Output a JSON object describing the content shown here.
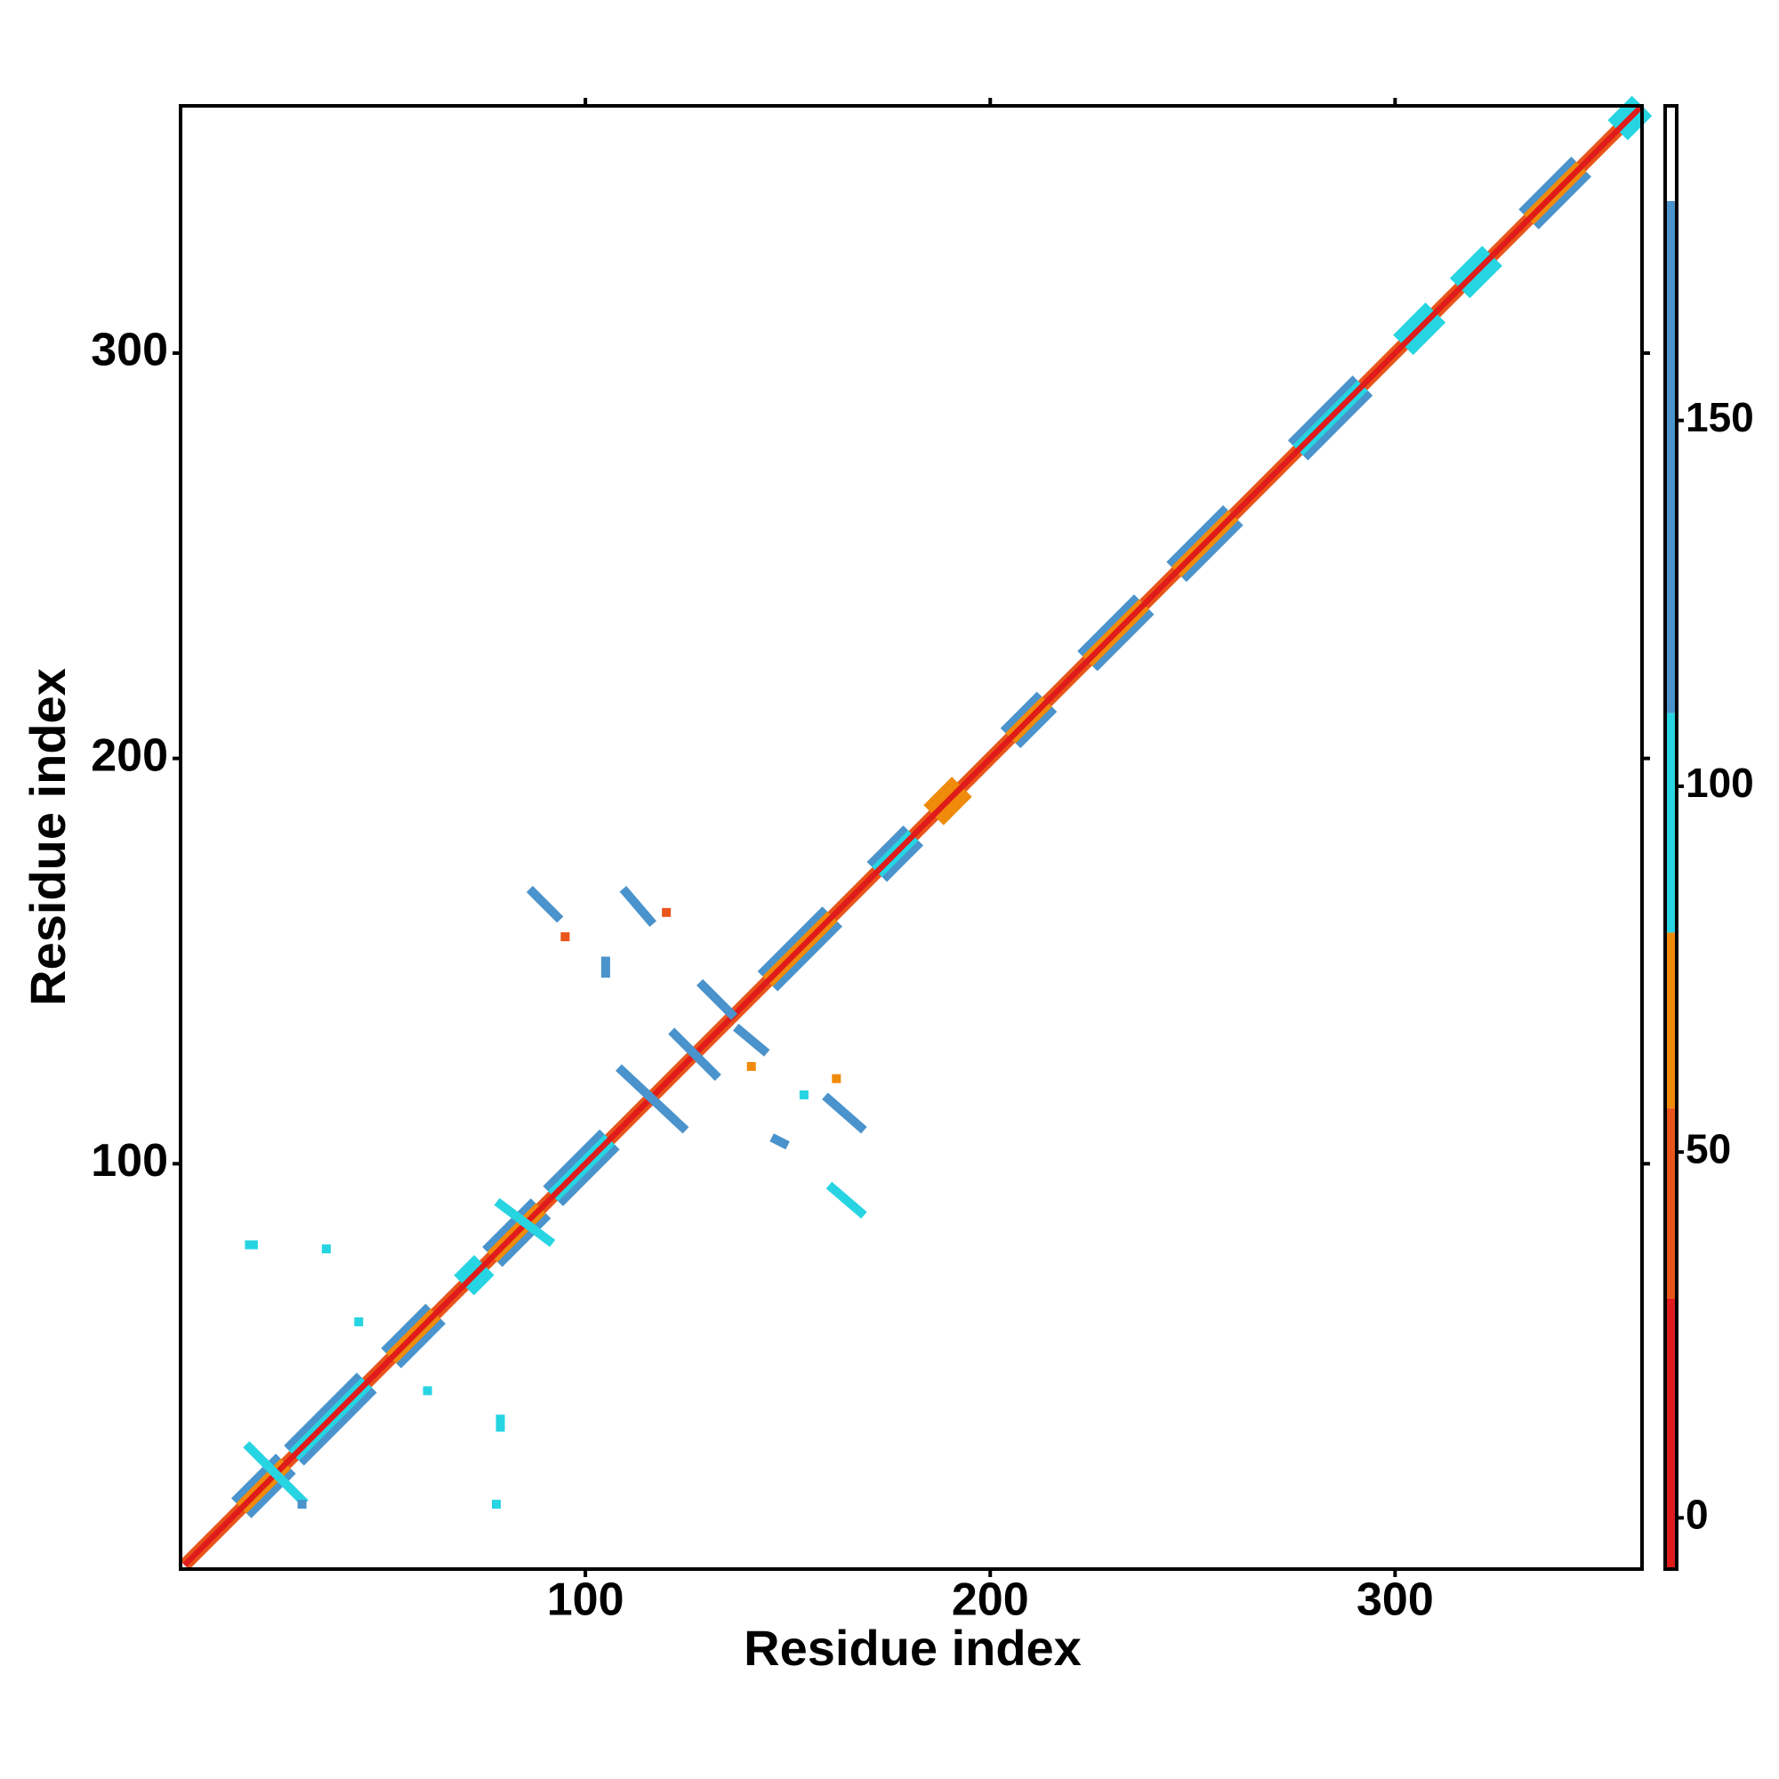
{
  "chart_data": {
    "type": "contact_map",
    "xlabel": "Residue index",
    "ylabel": "Residue index",
    "xlim": [
      0,
      361
    ],
    "ylim": [
      0,
      361
    ],
    "xticks": [
      100,
      200,
      300
    ],
    "yticks": [
      100,
      200,
      300
    ],
    "colorbar": {
      "lim": [
        -7,
        193
      ],
      "ticks": [
        0,
        50,
        100,
        150
      ],
      "bounds": [
        -7,
        30,
        56,
        80,
        110,
        180,
        193
      ],
      "colors": [
        "#e01b1b",
        "#e9541a",
        "#f08a0a",
        "#27d4e2",
        "#4a93cc",
        "#ffffff"
      ]
    },
    "diagonal_wide": [
      {
        "x": [
          1,
          361
        ],
        "y": [
          1,
          361
        ],
        "value": 45
      }
    ],
    "helix_outer": [
      {
        "x": [
          15,
          26
        ],
        "y": [
          15,
          26
        ],
        "value": 140
      },
      {
        "x": [
          28,
          46
        ],
        "y": [
          28,
          46
        ],
        "value": 140
      },
      {
        "x": [
          52,
          63
        ],
        "y": [
          52,
          63
        ],
        "value": 140
      },
      {
        "x": [
          70,
          75
        ],
        "y": [
          70,
          75
        ],
        "value": 100
      },
      {
        "x": [
          77,
          89
        ],
        "y": [
          77,
          89
        ],
        "value": 140
      },
      {
        "x": [
          92,
          106
        ],
        "y": [
          92,
          106
        ],
        "value": 140
      },
      {
        "x": [
          145,
          161
        ],
        "y": [
          145,
          161
        ],
        "value": 140
      },
      {
        "x": [
          172,
          181
        ],
        "y": [
          172,
          181
        ],
        "value": 140
      },
      {
        "x": [
          186,
          193
        ],
        "y": [
          186,
          193
        ],
        "value": 60
      },
      {
        "x": [
          205,
          214
        ],
        "y": [
          205,
          214
        ],
        "value": 140
      },
      {
        "x": [
          224,
          238
        ],
        "y": [
          224,
          238
        ],
        "value": 140
      },
      {
        "x": [
          246,
          260
        ],
        "y": [
          246,
          260
        ],
        "value": 140
      },
      {
        "x": [
          276,
          292
        ],
        "y": [
          276,
          292
        ],
        "value": 140
      },
      {
        "x": [
          302,
          310
        ],
        "y": [
          302,
          310
        ],
        "value": 100
      },
      {
        "x": [
          316,
          324
        ],
        "y": [
          316,
          324
        ],
        "value": 100
      },
      {
        "x": [
          333,
          346
        ],
        "y": [
          333,
          346
        ],
        "value": 140
      },
      {
        "x": [
          355,
          361
        ],
        "y": [
          355,
          361
        ],
        "value": 100
      }
    ],
    "helix_inner": [
      {
        "x": [
          15,
          26
        ],
        "y": [
          15,
          26
        ],
        "value": 65
      },
      {
        "x": [
          28,
          46
        ],
        "y": [
          28,
          46
        ],
        "value": 95
      },
      {
        "x": [
          52,
          63
        ],
        "y": [
          52,
          63
        ],
        "value": 65
      },
      {
        "x": [
          77,
          89
        ],
        "y": [
          77,
          89
        ],
        "value": 65
      },
      {
        "x": [
          92,
          106
        ],
        "y": [
          92,
          106
        ],
        "value": 95
      },
      {
        "x": [
          145,
          161
        ],
        "y": [
          145,
          161
        ],
        "value": 65
      },
      {
        "x": [
          172,
          181
        ],
        "y": [
          172,
          181
        ],
        "value": 95
      },
      {
        "x": [
          205,
          214
        ],
        "y": [
          205,
          214
        ],
        "value": 65
      },
      {
        "x": [
          224,
          238
        ],
        "y": [
          224,
          238
        ],
        "value": 65
      },
      {
        "x": [
          246,
          260
        ],
        "y": [
          246,
          260
        ],
        "value": 65
      },
      {
        "x": [
          276,
          292
        ],
        "y": [
          276,
          292
        ],
        "value": 95
      },
      {
        "x": [
          333,
          346
        ],
        "y": [
          333,
          346
        ],
        "value": 65
      }
    ],
    "diagonal": [
      {
        "x": [
          1,
          361
        ],
        "y": [
          1,
          361
        ],
        "value": 10
      }
    ],
    "contacts": [
      {
        "x": [
          87,
          93
        ],
        "y": [
          167,
          161
        ],
        "value": 150
      },
      {
        "x": [
          110,
          116
        ],
        "y": [
          167,
          160
        ],
        "value": 150
      },
      {
        "x": [
          109,
          124
        ],
        "y": [
          123,
          109
        ],
        "value": 150
      },
      {
        "x": [
          122,
          132
        ],
        "y": [
          132,
          122
        ],
        "value": 150
      },
      {
        "x": [
          129,
          136
        ],
        "y": [
          144,
          137
        ],
        "value": 150
      },
      {
        "x": [
          138,
          144
        ],
        "y": [
          133,
          128
        ],
        "value": 130
      },
      {
        "x": [
          160,
          168
        ],
        "y": [
          116,
          109
        ],
        "value": 150
      },
      {
        "x": [
          161,
          168
        ],
        "y": [
          94,
          88
        ],
        "value": 105
      },
      {
        "x": [
          79,
          91
        ],
        "y": [
          90,
          81
        ],
        "value": 105
      },
      {
        "x": [
          17,
          30
        ],
        "y": [
          30,
          17
        ],
        "value": 105
      },
      {
        "x": [
          36,
          36
        ],
        "y": [
          79,
          79
        ],
        "value": 105
      },
      {
        "x": [
          17,
          18
        ],
        "y": [
          80,
          80
        ],
        "value": 105
      },
      {
        "x": [
          79,
          79
        ],
        "y": [
          35,
          37
        ],
        "value": 105
      },
      {
        "x": [
          78,
          78
        ],
        "y": [
          16,
          16
        ],
        "value": 105
      },
      {
        "x": [
          30,
          30
        ],
        "y": [
          16,
          16
        ],
        "value": 150
      },
      {
        "x": [
          105,
          105
        ],
        "y": [
          147,
          150
        ],
        "value": 150
      },
      {
        "x": [
          95,
          95
        ],
        "y": [
          156,
          156
        ],
        "value": 40
      },
      {
        "x": [
          120,
          120
        ],
        "y": [
          162,
          162
        ],
        "value": 40
      },
      {
        "x": [
          141,
          141
        ],
        "y": [
          124,
          124
        ],
        "value": 70
      },
      {
        "x": [
          147,
          149
        ],
        "y": [
          106,
          105
        ],
        "value": 150
      },
      {
        "x": [
          154,
          154
        ],
        "y": [
          117,
          117
        ],
        "value": 105
      },
      {
        "x": [
          162,
          162
        ],
        "y": [
          121,
          121
        ],
        "value": 60
      },
      {
        "x": [
          44,
          44
        ],
        "y": [
          61,
          61
        ],
        "value": 105
      },
      {
        "x": [
          61,
          61
        ],
        "y": [
          44,
          44
        ],
        "value": 105
      }
    ]
  }
}
